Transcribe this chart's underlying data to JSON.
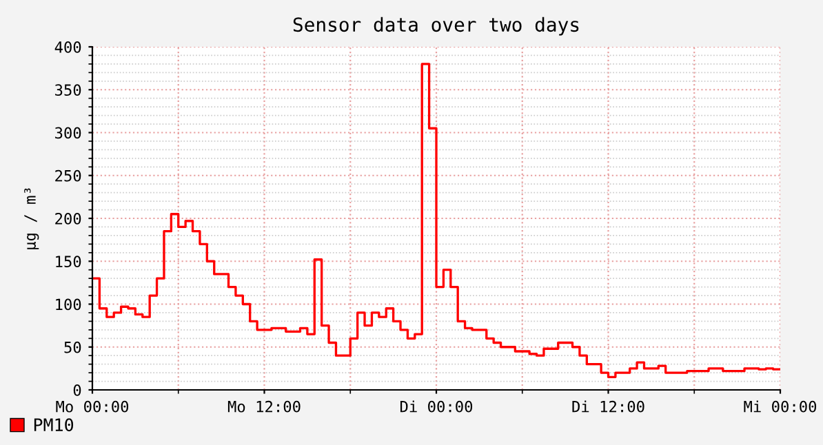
{
  "chart_data": {
    "type": "step",
    "title": "Sensor data over two days",
    "ylabel": "µg / m³",
    "categories": [
      "Mo 00:00",
      null,
      null,
      null,
      null,
      null,
      null,
      null,
      null,
      null,
      null,
      null,
      null,
      null,
      null,
      null,
      null,
      null,
      null,
      null,
      null,
      null,
      null,
      null,
      "Mo 12:00",
      null,
      null,
      null,
      null,
      null,
      null,
      null,
      null,
      null,
      null,
      null,
      null,
      null,
      null,
      null,
      null,
      null,
      null,
      null,
      null,
      null,
      null,
      null,
      "Di 00:00",
      null,
      null,
      null,
      null,
      null,
      null,
      null,
      null,
      null,
      null,
      null,
      null,
      null,
      null,
      null,
      null,
      null,
      null,
      null,
      null,
      null,
      null,
      null,
      "Di 12:00",
      null,
      null,
      null,
      null,
      null,
      null,
      null,
      null,
      null,
      null,
      null,
      null,
      null,
      null,
      null,
      null,
      null,
      null,
      null,
      null,
      null,
      null,
      null,
      "Mi 00:00"
    ],
    "ylim": [
      0,
      400
    ],
    "yticks": [
      0,
      50,
      100,
      150,
      200,
      250,
      300,
      350,
      400
    ],
    "grid": true,
    "legend": "bottom left",
    "line_style": "solid",
    "series": [
      {
        "name": "PM10",
        "color": "#ff0000",
        "values": [
          130,
          95,
          85,
          90,
          97,
          95,
          88,
          85,
          110,
          130,
          185,
          205,
          190,
          197,
          185,
          170,
          150,
          135,
          135,
          120,
          110,
          100,
          80,
          70,
          70,
          72,
          72,
          68,
          68,
          72,
          65,
          152,
          75,
          55,
          40,
          40,
          60,
          90,
          75,
          90,
          85,
          95,
          80,
          70,
          60,
          65,
          380,
          305,
          120,
          140,
          120,
          80,
          72,
          70,
          70,
          60,
          55,
          50,
          50,
          45,
          45,
          42,
          40,
          48,
          48,
          55,
          55,
          50,
          40,
          30,
          30,
          20,
          15,
          20,
          20,
          25,
          32,
          25,
          25,
          28,
          20,
          20,
          20,
          22,
          22,
          22,
          25,
          25,
          22,
          22,
          22,
          25,
          25,
          24,
          25,
          24,
          24
        ]
      }
    ]
  }
}
